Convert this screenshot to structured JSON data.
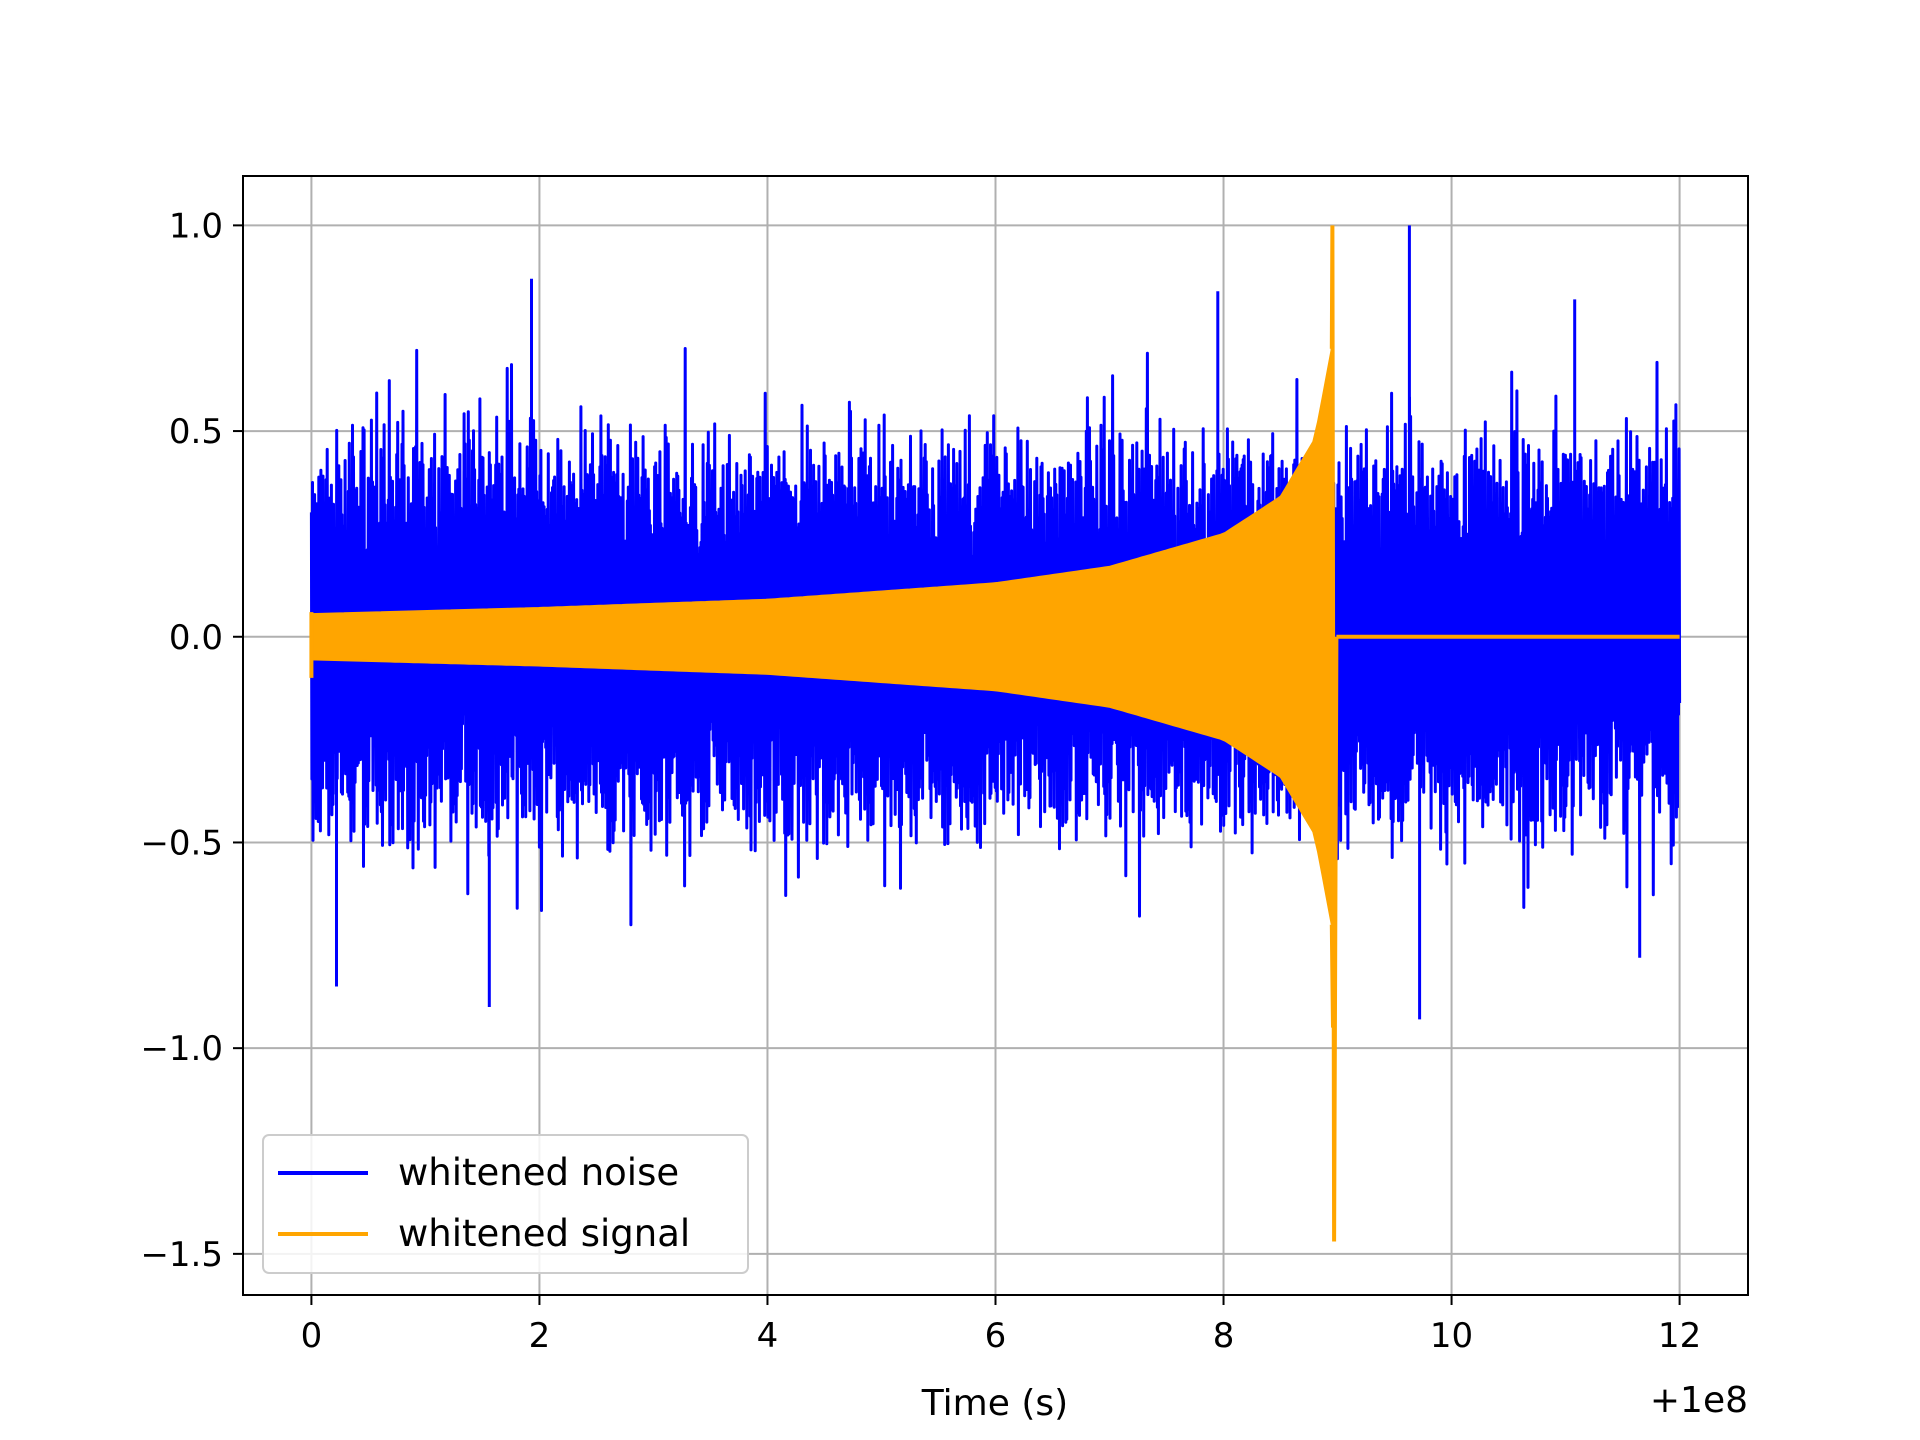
{
  "chart_data": {
    "type": "line",
    "title": "",
    "xlabel": "Time (s)",
    "ylabel": "",
    "x_offset_label": "+1e8",
    "xlim": [
      -0.6,
      12.6
    ],
    "ylim": [
      -1.6,
      1.12
    ],
    "x_ticks": [
      0,
      2,
      4,
      6,
      8,
      10,
      12
    ],
    "x_tick_labels": [
      "0",
      "2",
      "4",
      "6",
      "8",
      "10",
      "12"
    ],
    "y_ticks": [
      1.0,
      0.5,
      0.0,
      -0.5,
      -1.0,
      -1.5
    ],
    "y_tick_labels": [
      "1.0",
      "0.5",
      "0.0",
      "−0.5",
      "−1.0",
      "−1.5"
    ],
    "grid": true,
    "legend_position": "lower-left",
    "series": [
      {
        "name": "whitened noise",
        "color": "#0000ff",
        "x_range": [
          0,
          12
        ],
        "typical_abs_amplitude": 0.45,
        "peaks": [
          {
            "x": 0.22,
            "y": -0.85
          },
          {
            "x": 1.56,
            "y": -0.9
          },
          {
            "x": 1.93,
            "y": 0.87
          },
          {
            "x": 7.95,
            "y": 0.84
          },
          {
            "x": 9.63,
            "y": 1.0
          },
          {
            "x": 9.72,
            "y": -0.93
          },
          {
            "x": 11.08,
            "y": 0.82
          },
          {
            "x": 11.65,
            "y": -0.78
          }
        ]
      },
      {
        "name": "whitened signal",
        "color": "#ffa500",
        "x_range": [
          0,
          12
        ],
        "envelope": [
          {
            "x": 0,
            "y": 0.055
          },
          {
            "x": 2,
            "y": 0.07
          },
          {
            "x": 4,
            "y": 0.09
          },
          {
            "x": 6,
            "y": 0.13
          },
          {
            "x": 7,
            "y": 0.17
          },
          {
            "x": 8,
            "y": 0.25
          },
          {
            "x": 8.5,
            "y": 0.34
          },
          {
            "x": 8.8,
            "y": 0.48
          },
          {
            "x": 8.95,
            "y": 0.7
          }
        ],
        "merger_time": 8.97,
        "merger_peak_max": 1.0,
        "merger_peak_min": -1.47,
        "post_merger_value": 0.0
      }
    ]
  }
}
